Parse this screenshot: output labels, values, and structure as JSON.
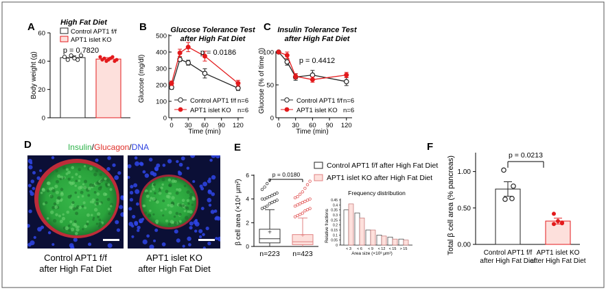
{
  "panels": {
    "A": {
      "letter": "A",
      "title": "High Fat Diet",
      "ylabel": "Body weight (g)",
      "pvalue": "p = 0.7820",
      "yticks": [
        "0",
        "20",
        "40",
        "60"
      ]
    },
    "B": {
      "letter": "B",
      "title_line1": "Glucose Tolerance Test",
      "title_line2": "after High Fat Diet",
      "ylabel": "Glucose (mg/dl)",
      "xlabel": "Time (min)",
      "pvalue": "p = 0.0186",
      "legend": [
        {
          "label": "Control APT1 f/f",
          "n": "n=6"
        },
        {
          "label": "APT1 islet KO",
          "n": "n=6"
        }
      ],
      "xticks": [
        "0",
        "30",
        "60",
        "90",
        "120"
      ],
      "yticks": [
        "0",
        "100",
        "200",
        "300",
        "400",
        "500"
      ]
    },
    "C": {
      "letter": "C",
      "title_line1": "Insulin Tolerance Test",
      "title_line2": "after High Fat Diet",
      "ylabel": "Glucose (% of time 0)",
      "xlabel": "Time (min)",
      "pvalue": "p = 0.4412",
      "legend": [
        {
          "label": "Control APT1 f/f",
          "n": "n=6"
        },
        {
          "label": "APT1 islet KO",
          "n": "n=6"
        }
      ],
      "xticks": [
        "0",
        "30",
        "60",
        "90",
        "120"
      ],
      "yticks": [
        "0",
        "50",
        "100"
      ]
    },
    "D": {
      "letter": "D",
      "stain_insulin": "Insulin",
      "stain_sep1": "/",
      "stain_glucagon": "Glucagon",
      "stain_sep2": "/",
      "stain_dna": "DNA",
      "caption_left_1": "Control APT1 f/f",
      "caption_left_2": "after High Fat Diet",
      "caption_right_1": "APT1 islet KO",
      "caption_right_2": "after High Fat Diet"
    },
    "E": {
      "letter": "E",
      "ylabel": "β cell area (×10⁴ μm²)",
      "pvalue": "p = 0.0180",
      "n_control": "n=223",
      "n_ko": "n=423",
      "legend_control": "Control APT1 f/f after High Fat Diet",
      "legend_ko": "APT1 islet KO after High Fat Diet",
      "hist_title": "Frequency distribution",
      "hist_ylabel": "Relative fractions",
      "hist_xlabel": "Area size (×10³ μm²)",
      "yticks": [
        "0",
        "2",
        "4",
        "6"
      ],
      "hist_yticks": [
        "0",
        "0.05",
        "0.1",
        "0.15",
        "0.2",
        "0.25",
        "0.3",
        "0.35",
        "0.4",
        "0.45"
      ],
      "hist_xticks": [
        "< 3",
        "< 6",
        "< 9",
        "< 12",
        "< 15",
        "> 15"
      ]
    },
    "F": {
      "letter": "F",
      "ylabel": "Total β cell area (% pancreas)",
      "pvalue": "p = 0.0213",
      "cat1_line1": "Control APT1 f/f",
      "cat1_line2": "after High Fat Diet",
      "cat2_line1": "APT1 islet KO",
      "cat2_line2": "after High Fat Diet",
      "yticks": [
        "0.00",
        "0.50",
        "1.00"
      ]
    }
  },
  "colors": {
    "control": "#222222",
    "ko": "#e31a1c",
    "ko_fill": "#fde0dc",
    "insulin": "#2db34a",
    "glucagon": "#e0302a",
    "dna": "#2a3fe0"
  },
  "chart_data": [
    {
      "panel": "A",
      "type": "bar",
      "categories": [
        "Control APT1 f/f",
        "APT1 islet KO"
      ],
      "values": [
        42.5,
        41.5
      ],
      "errors": [
        1.2,
        1.0
      ],
      "points": [
        [
          43,
          41,
          44,
          42,
          41,
          44
        ],
        [
          43,
          41,
          42,
          40,
          41,
          42,
          43,
          40,
          41
        ]
      ],
      "ylabel": "Body weight (g)",
      "ylim": [
        0,
        60
      ]
    },
    {
      "panel": "B",
      "type": "line",
      "x": [
        0,
        15,
        30,
        60,
        120
      ],
      "series": [
        {
          "name": "Control APT1 f/f",
          "values": [
            185,
            355,
            335,
            270,
            180
          ],
          "errors": [
            12,
            12,
            15,
            28,
            14
          ]
        },
        {
          "name": "APT1 islet KO",
          "values": [
            210,
            395,
            430,
            375,
            210
          ],
          "errors": [
            14,
            22,
            28,
            30,
            18
          ]
        }
      ],
      "xlabel": "Time (min)",
      "ylabel": "Glucose (mg/dl)",
      "xlim": [
        0,
        130
      ],
      "ylim": [
        0,
        500
      ]
    },
    {
      "panel": "C",
      "type": "line",
      "x": [
        0,
        15,
        30,
        60,
        120
      ],
      "series": [
        {
          "name": "Control APT1 f/f",
          "values": [
            100,
            85,
            62,
            65,
            55
          ],
          "errors": [
            0,
            5,
            5,
            7,
            6
          ]
        },
        {
          "name": "APT1 islet KO",
          "values": [
            100,
            95,
            63,
            58,
            65
          ],
          "errors": [
            0,
            5,
            4,
            4,
            4
          ]
        }
      ],
      "xlabel": "Time (min)",
      "ylabel": "Glucose (% of time 0)",
      "xlim": [
        0,
        130
      ],
      "ylim": [
        0,
        100
      ]
    },
    {
      "panel": "E",
      "type": "box",
      "categories": [
        "Control APT1 f/f after High Fat Diet",
        "APT1 islet KO after High Fat Diet"
      ],
      "boxes": [
        {
          "min": 0,
          "q1": 0.3,
          "median": 0.65,
          "q3": 1.45,
          "max": 3.1,
          "mean": 1.2
        },
        {
          "min": 0,
          "q1": 0.15,
          "median": 0.4,
          "q3": 1.0,
          "max": 2.4,
          "mean": 0.95
        }
      ],
      "outliers": [
        [
          3.2,
          3.3,
          3.4,
          3.6,
          3.7,
          3.8,
          3.9,
          4.0,
          4.0,
          4.1,
          4.2,
          4.3,
          4.4,
          4.5,
          4.8,
          5.0,
          5.3,
          5.6
        ],
        [
          2.5,
          2.6,
          2.7,
          2.8,
          3.0,
          3.1,
          3.2,
          3.4,
          3.5,
          3.6,
          3.7,
          3.8,
          3.9,
          4.0,
          4.1,
          4.2,
          4.4,
          4.6,
          4.9,
          5.2,
          5.5
        ]
      ],
      "ylabel": "β cell area (×10⁴ μm²)",
      "ylim": [
        0,
        6
      ]
    },
    {
      "panel": "E-inset",
      "type": "bar",
      "categories": [
        "< 3",
        "< 6",
        "< 9",
        "< 12",
        "< 15",
        "> 15"
      ],
      "series": [
        {
          "name": "Control APT1 f/f after High Fat Diet",
          "values": [
            0.35,
            0.32,
            0.15,
            0.1,
            0.08,
            0.06
          ]
        },
        {
          "name": "APT1 islet KO after High Fat Diet",
          "values": [
            0.41,
            0.27,
            0.15,
            0.09,
            0.06,
            0.05
          ]
        }
      ],
      "xlabel": "Area size (×10³ μm²)",
      "ylabel": "Relative fractions",
      "ylim": [
        0,
        0.45
      ]
    },
    {
      "panel": "F",
      "type": "bar",
      "categories": [
        "Control APT1 f/f after High Fat Diet",
        "APT1 islet KO after High Fat Diet"
      ],
      "values": [
        0.76,
        0.32
      ],
      "errors": [
        0.1,
        0.04
      ],
      "points": [
        [
          1.02,
          0.8,
          0.62,
          0.63
        ],
        [
          0.42,
          0.32,
          0.29,
          0.28,
          0.3
        ]
      ],
      "ylabel": "Total β cell area (% pancreas)",
      "ylim": [
        0,
        1.25
      ]
    }
  ]
}
